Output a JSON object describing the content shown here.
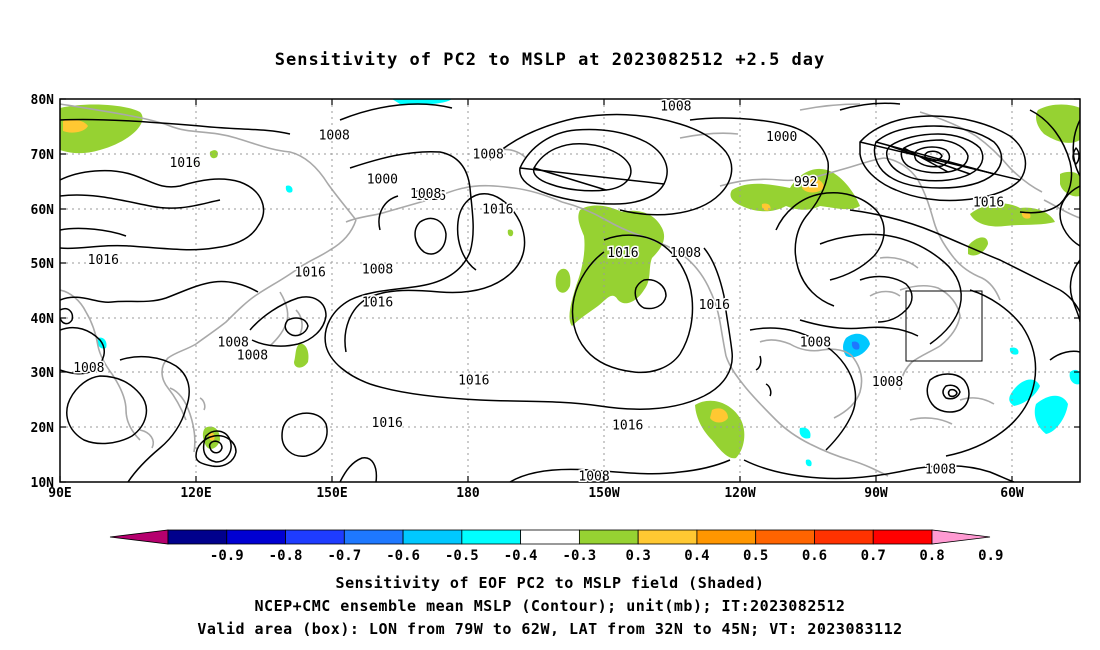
{
  "title": "Sensitivity of PC2 to MSLP at 2023082512 +2.5 day",
  "map": {
    "lat_labels": [
      "80N",
      "70N",
      "60N",
      "50N",
      "40N",
      "30N",
      "20N",
      "10N"
    ],
    "lon_labels": [
      "90E",
      "120E",
      "150E",
      "180",
      "150W",
      "120W",
      "90W",
      "60W"
    ],
    "contour_labels": [
      {
        "text": "1008",
        "lon": 147,
        "lat": 73.5
      },
      {
        "text": "1008",
        "lon": 179,
        "lat": 70
      },
      {
        "text": "1016",
        "lon": 116,
        "lat": 68.5
      },
      {
        "text": "1008",
        "lon": 218,
        "lat": 78.8
      },
      {
        "text": "1000",
        "lon": 240,
        "lat": 73.2
      },
      {
        "text": "992",
        "lon": 245,
        "lat": 65
      },
      {
        "text": "1016",
        "lon": 283,
        "lat": 61.3
      },
      {
        "text": "1016",
        "lon": 167,
        "lat": 62.5
      },
      {
        "text": "1000",
        "lon": 157,
        "lat": 65.5
      },
      {
        "text": "1008",
        "lon": 166,
        "lat": 62.8
      },
      {
        "text": "1016",
        "lon": 181,
        "lat": 60
      },
      {
        "text": "1016",
        "lon": 99,
        "lat": 50.8
      },
      {
        "text": "1016",
        "lon": 142,
        "lat": 48.5
      },
      {
        "text": "1008",
        "lon": 156,
        "lat": 49
      },
      {
        "text": "1016",
        "lon": 156,
        "lat": 43
      },
      {
        "text": "1016",
        "lon": 207,
        "lat": 52
      },
      {
        "text": "1008",
        "lon": 220,
        "lat": 52
      },
      {
        "text": "1016",
        "lon": 226,
        "lat": 42.5
      },
      {
        "text": "1008",
        "lon": 126,
        "lat": 35.7
      },
      {
        "text": "1008",
        "lon": 130,
        "lat": 33.3
      },
      {
        "text": "1008",
        "lon": 96,
        "lat": 31
      },
      {
        "text": "1008",
        "lon": 247,
        "lat": 35.7
      },
      {
        "text": "1016",
        "lon": 176,
        "lat": 28.7
      },
      {
        "text": "1016",
        "lon": 158,
        "lat": 21
      },
      {
        "text": "1016",
        "lon": 208,
        "lat": 20.5
      },
      {
        "text": "1008",
        "lon": 201,
        "lat": 11.2
      },
      {
        "text": "1008",
        "lon": 262,
        "lat": 28.5
      },
      {
        "text": "1008",
        "lon": 273,
        "lat": 12.5
      }
    ]
  },
  "colorbar": {
    "labels": [
      "-0.9",
      "-0.8",
      "-0.7",
      "-0.6",
      "-0.5",
      "-0.4",
      "-0.3",
      "0.3",
      "0.4",
      "0.5",
      "0.6",
      "0.7",
      "0.8",
      "0.9"
    ],
    "colors": [
      "#b5006e",
      "#00008c",
      "#0000d2",
      "#1e3cff",
      "#1e78ff",
      "#00c8ff",
      "#00ffff",
      "#ffffff",
      "#96d232",
      "#ffc832",
      "#ff9600",
      "#ff6400",
      "#ff3200",
      "#ff0000",
      "#ff9ad2"
    ]
  },
  "captions": {
    "line1": "Sensitivity of EOF PC2 to MSLP field (Shaded)",
    "line2": "NCEP+CMC ensemble mean MSLP (Contour); unit(mb); IT:2023082512",
    "line3": "Valid area (box): LON from 79W to 62W, LAT from 32N to 45N; VT: 2023083112"
  },
  "box": {
    "lon_from": "79W",
    "lon_to": "62W",
    "lat_from": "32N",
    "lat_to": "45N"
  }
}
